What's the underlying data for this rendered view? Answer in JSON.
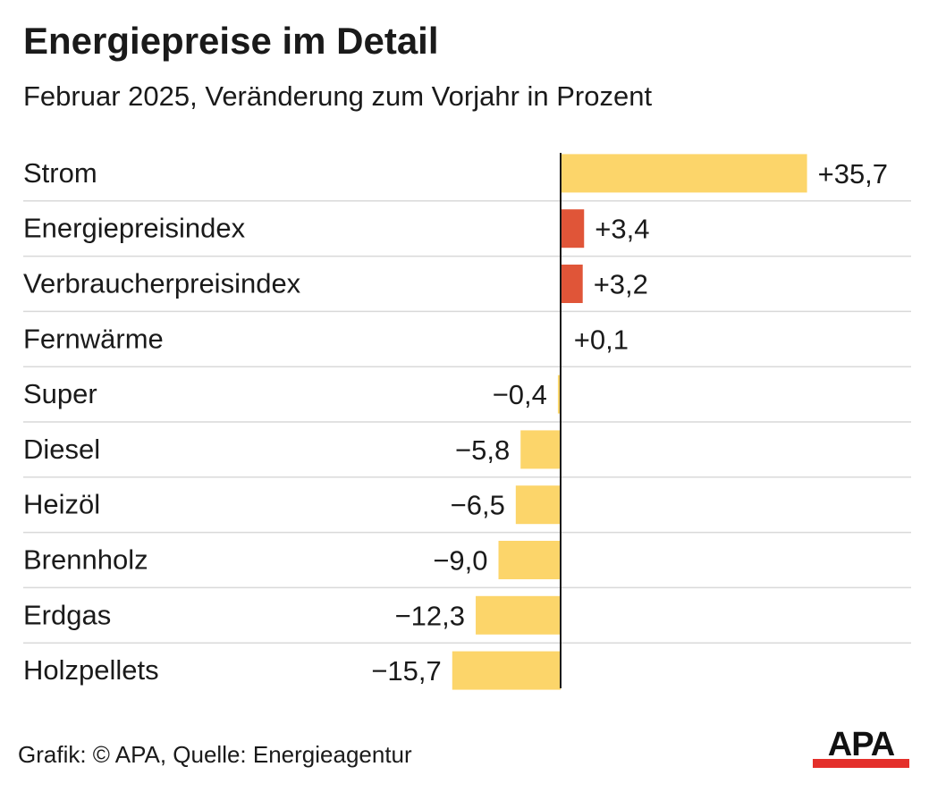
{
  "title": "Energiepreise im Detail",
  "subtitle": "Februar 2025, Veränderung zum Vorjahr in Prozent",
  "footer": "Grafik: © APA, Quelle: Energieagentur",
  "logo_text": "APA",
  "colors": {
    "bar_default": "#fcd56a",
    "bar_highlight": "#e05538",
    "gridline": "#d9d9d9",
    "axis": "#1a1a1a",
    "logo_red": "#e4302b"
  },
  "chart_data": {
    "type": "bar",
    "orientation": "horizontal",
    "categories": [
      "Strom",
      "Energiepreisindex",
      "Verbraucherpreisindex",
      "Fernwärme",
      "Super",
      "Diesel",
      "Heizöl",
      "Brennholz",
      "Erdgas",
      "Holzpellets"
    ],
    "values": [
      35.7,
      3.4,
      3.2,
      0.1,
      -0.4,
      -5.8,
      -6.5,
      -9.0,
      -12.3,
      -15.7
    ],
    "value_labels": [
      "+35,7",
      "+3,4",
      "+3,2",
      "+0,1",
      "−0,4",
      "−5,8",
      "−6,5",
      "−9,0",
      "−12,3",
      "−15,7"
    ],
    "highlighted": [
      "Energiepreisindex",
      "Verbraucherpreisindex"
    ],
    "xlim": [
      -16,
      36
    ],
    "grid": "horizontal separators"
  }
}
